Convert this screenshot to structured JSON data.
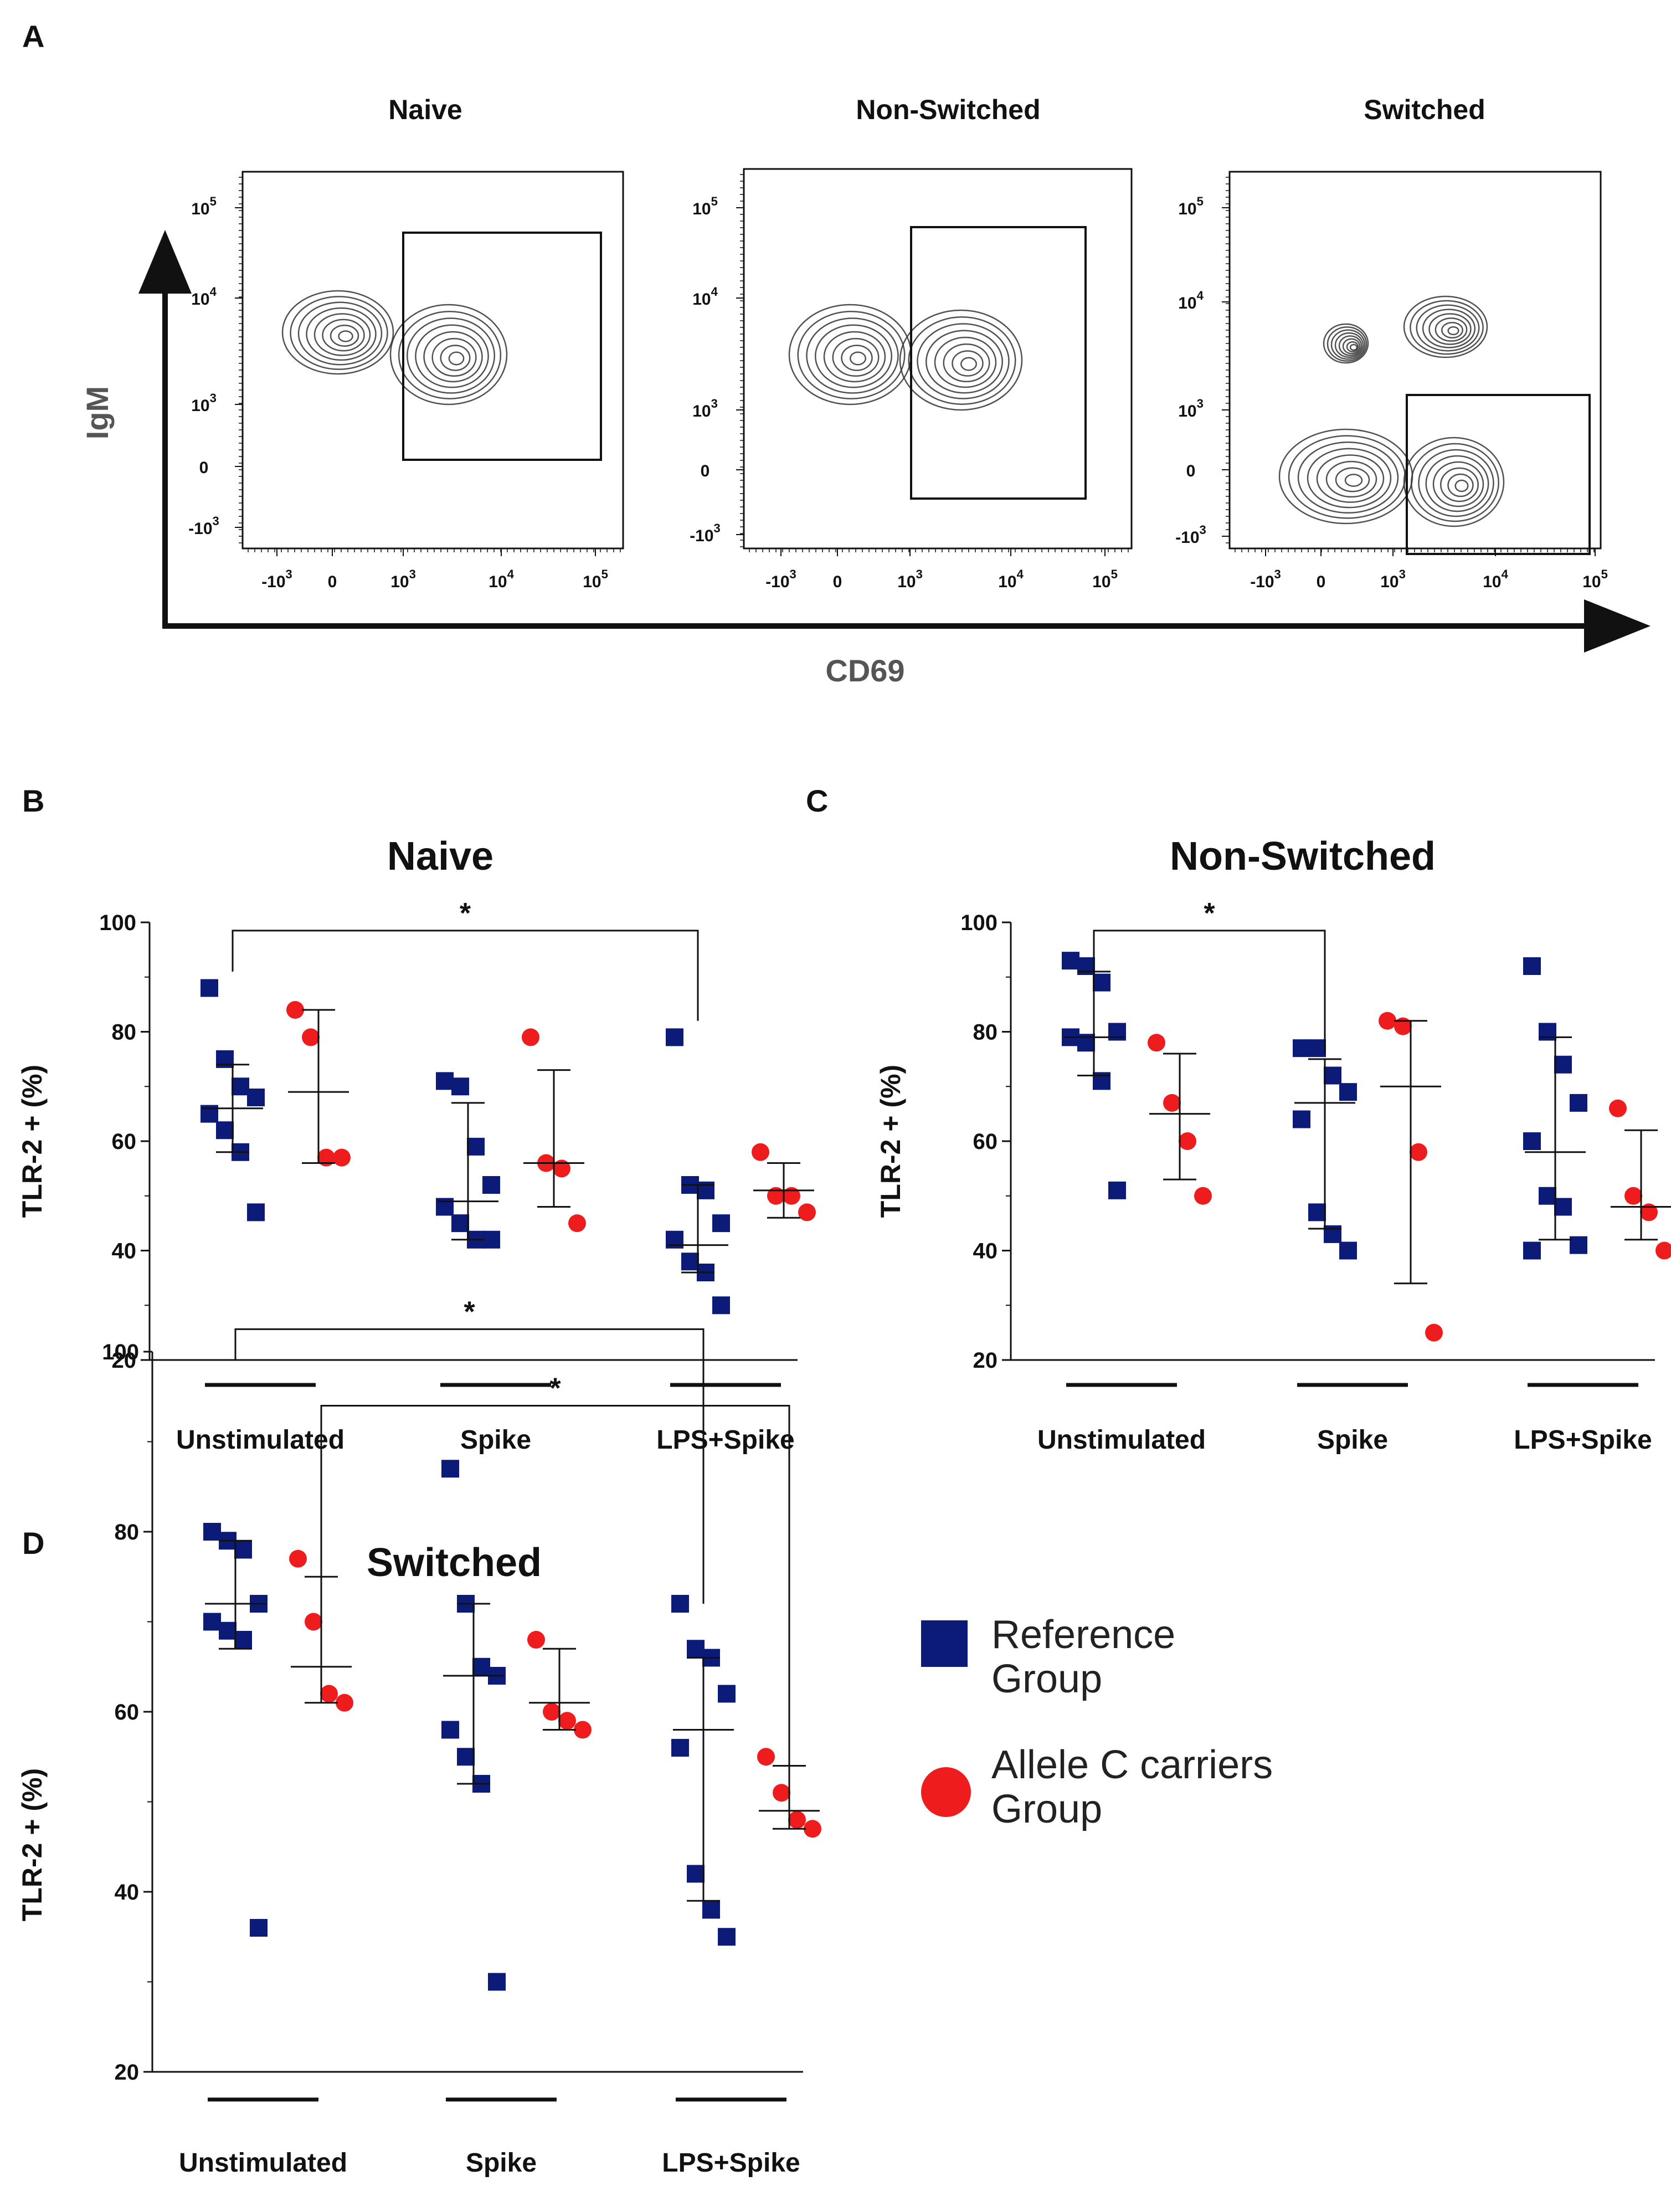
{
  "panels": {
    "A": {
      "letter": "A",
      "x_axis_label": "CD69",
      "y_axis_label": "IgM",
      "plots": [
        {
          "title": "Naive"
        },
        {
          "title": "Non-Switched"
        },
        {
          "title": "Switched"
        }
      ],
      "flow_ticks": {
        "y": [
          {
            "base": "10",
            "exp": "5"
          },
          {
            "base": "10",
            "exp": "4"
          },
          {
            "base": "10",
            "exp": "3"
          },
          {
            "base": "0",
            "exp": ""
          },
          {
            "base": "-10",
            "exp": "3"
          }
        ],
        "x": [
          {
            "base": "-10",
            "exp": "3"
          },
          {
            "base": "0",
            "exp": ""
          },
          {
            "base": "10",
            "exp": "3"
          },
          {
            "base": "10",
            "exp": "4"
          },
          {
            "base": "10",
            "exp": "5"
          }
        ]
      }
    },
    "B": {
      "letter": "B"
    },
    "C": {
      "letter": "C"
    },
    "D": {
      "letter": "D"
    }
  },
  "legend": {
    "reference": {
      "line1": "Reference",
      "line2": "Group",
      "color": "#0c1a78"
    },
    "allele": {
      "line1": "Allele C carriers",
      "line2": "Group",
      "color": "#ee1c1c"
    }
  },
  "chart_data": [
    {
      "type": "scatter",
      "panel": "B",
      "title": "Naive",
      "ylabel": "TLR-2 + (%)",
      "ylim": [
        20,
        100
      ],
      "yticks": [
        20,
        40,
        60,
        80,
        100
      ],
      "categories": [
        "Unstimulated",
        "Spike",
        "LPS+Spike"
      ],
      "series": [
        {
          "name": "Reference Group",
          "marker": "square",
          "color": "#0c1a78",
          "points": [
            [
              88,
              75,
              70,
              68,
              65,
              62,
              58,
              47
            ],
            [
              71,
              70,
              59,
              52,
              48,
              45,
              42,
              42
            ],
            [
              79,
              52,
              51,
              45,
              42,
              38,
              36,
              30
            ]
          ],
          "mean": [
            66,
            49,
            41
          ],
          "sd_low": [
            58,
            42,
            36
          ],
          "sd_high": [
            74,
            67,
            52
          ]
        },
        {
          "name": "Allele C carriers Group",
          "marker": "circle",
          "color": "#ee1c1c",
          "points": [
            [
              84,
              79,
              57,
              57
            ],
            [
              79,
              56,
              55,
              45
            ],
            [
              58,
              50,
              50,
              47
            ]
          ],
          "mean": [
            69,
            56,
            51
          ],
          "sd_low": [
            56,
            48,
            46
          ],
          "sd_high": [
            84,
            73,
            56
          ]
        }
      ],
      "significance": [
        {
          "from": "Unstimulated (Reference)",
          "to": "LPS+Spike (Reference)",
          "label": "*"
        }
      ]
    },
    {
      "type": "scatter",
      "panel": "C",
      "title": "Non-Switched",
      "ylabel": "TLR-2 + (%)",
      "ylim": [
        20,
        100
      ],
      "yticks": [
        20,
        40,
        60,
        80,
        100
      ],
      "categories": [
        "Unstimulated",
        "Spike",
        "LPS+Spike"
      ],
      "series": [
        {
          "name": "Reference Group",
          "marker": "square",
          "color": "#0c1a78",
          "points": [
            [
              93,
              92,
              89,
              80,
              79,
              78,
              71,
              51
            ],
            [
              77,
              77,
              72,
              69,
              64,
              47,
              43,
              40
            ],
            [
              92,
              80,
              74,
              67,
              60,
              50,
              48,
              41,
              40
            ]
          ],
          "mean": [
            79,
            67,
            58
          ],
          "sd_low": [
            72,
            44,
            42
          ],
          "sd_high": [
            91,
            75,
            79
          ]
        },
        {
          "name": "Allele C carriers Group",
          "marker": "circle",
          "color": "#ee1c1c",
          "points": [
            [
              78,
              67,
              60,
              50
            ],
            [
              82,
              81,
              58,
              25
            ],
            [
              66,
              50,
              47,
              40
            ]
          ],
          "mean": [
            65,
            70,
            48
          ],
          "sd_low": [
            53,
            34,
            42
          ],
          "sd_high": [
            76,
            82,
            62
          ]
        }
      ],
      "significance": [
        {
          "from": "Unstimulated (Reference)",
          "to": "Spike (Reference)",
          "label": "*"
        }
      ]
    },
    {
      "type": "scatter",
      "panel": "D",
      "title": "Switched",
      "ylabel": "TLR-2 + (%)",
      "ylim": [
        20,
        100
      ],
      "yticks": [
        20,
        40,
        60,
        80,
        100
      ],
      "categories": [
        "Unstimulated",
        "Spike",
        "LPS+Spike"
      ],
      "series": [
        {
          "name": "Reference Group",
          "marker": "square",
          "color": "#0c1a78",
          "points": [
            [
              80,
              79,
              78,
              72,
              70,
              69,
              68,
              36
            ],
            [
              87,
              72,
              65,
              64,
              58,
              55,
              52,
              30
            ],
            [
              72,
              67,
              66,
              62,
              56,
              42,
              38,
              35
            ]
          ],
          "mean": [
            72,
            64,
            58
          ],
          "sd_low": [
            67,
            52,
            39
          ],
          "sd_high": [
            79,
            72,
            66
          ]
        },
        {
          "name": "Allele C carriers Group",
          "marker": "circle",
          "color": "#ee1c1c",
          "points": [
            [
              77,
              70,
              62,
              61
            ],
            [
              68,
              60,
              59,
              58
            ],
            [
              55,
              51,
              48,
              47
            ]
          ],
          "mean": [
            65,
            61,
            49
          ],
          "sd_low": [
            61,
            58,
            47
          ],
          "sd_high": [
            75,
            67,
            54
          ]
        }
      ],
      "significance": [
        {
          "from": "Unstimulated (Reference)",
          "to": "LPS+Spike (Reference)",
          "label": "*"
        },
        {
          "from": "Unstimulated (Allele C carriers)",
          "to": "LPS+Spike (Allele C carriers)",
          "label": "*"
        }
      ]
    }
  ]
}
